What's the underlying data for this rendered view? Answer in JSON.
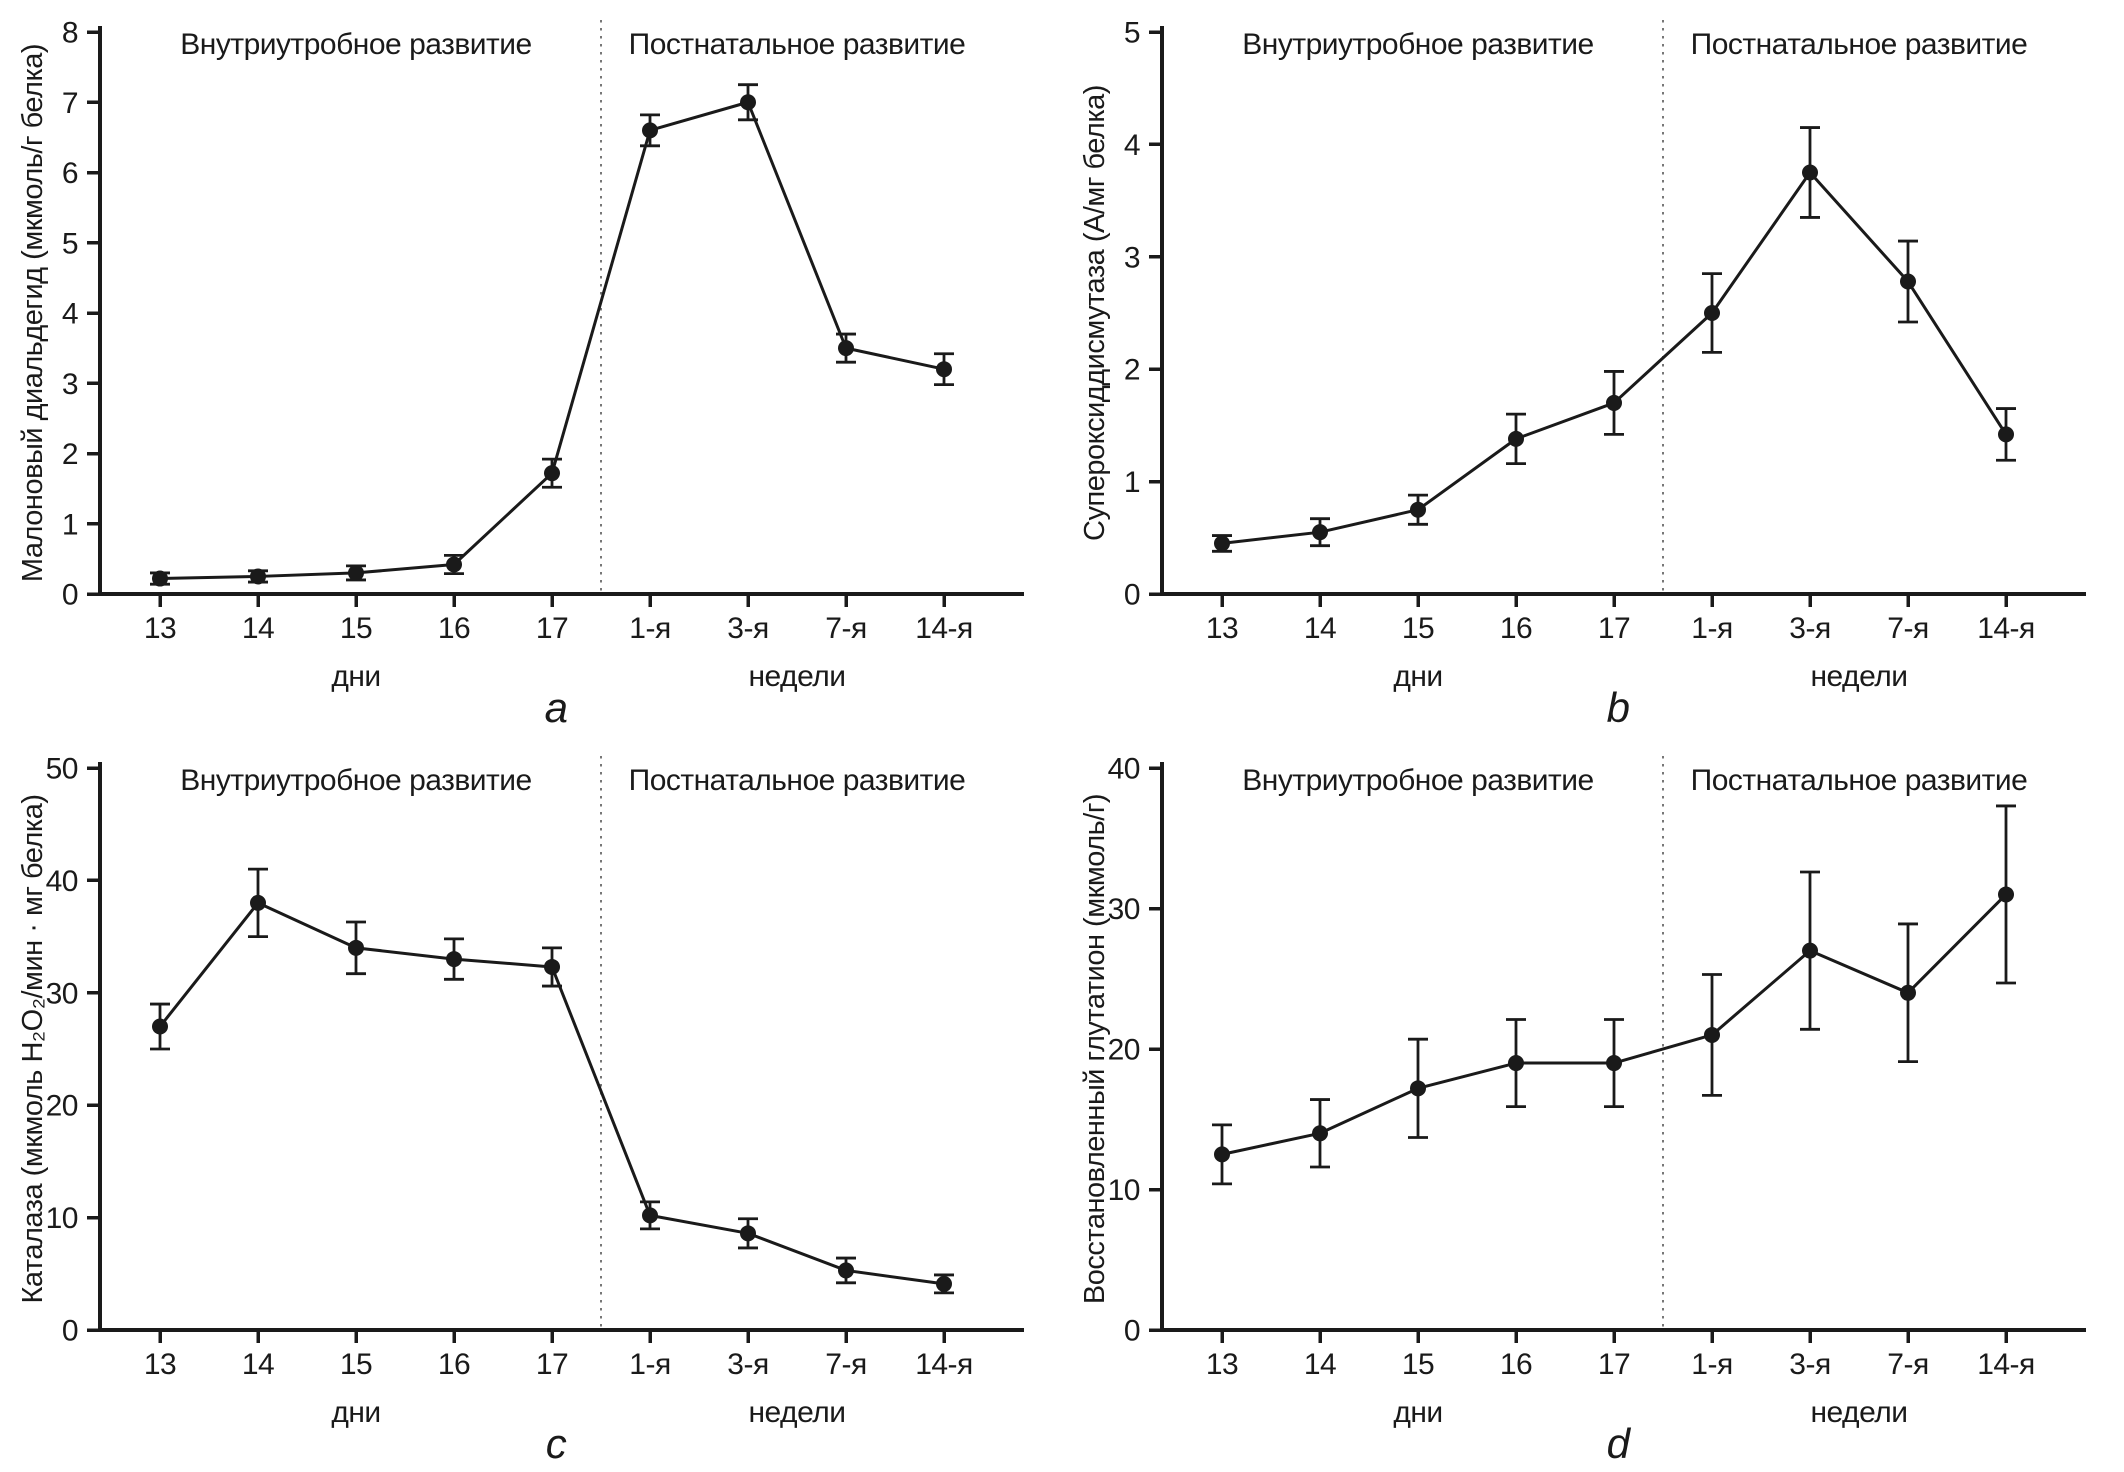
{
  "figure": {
    "background": "#ffffff",
    "line_color": "#1a1a1a",
    "axis_color": "#1a1a1a",
    "divider_color": "#777777",
    "marker": "filled-circle",
    "error_bars": true
  },
  "chart_data": [
    {
      "type": "line",
      "panel_label": "a",
      "ylabel": "Малоновый диальдегид (мкмоль/г белка)",
      "ylim": [
        0,
        8
      ],
      "yticks": [
        0,
        1,
        2,
        3,
        4,
        5,
        6,
        7,
        8
      ],
      "sections": {
        "left": "Внутриутробное развитие",
        "right": "Постнатальное развитие"
      },
      "x_groups": [
        {
          "label": "дни",
          "categories": [
            "13",
            "14",
            "15",
            "16",
            "17"
          ]
        },
        {
          "label": "недели",
          "categories": [
            "1-я",
            "3-я",
            "7-я",
            "14-я"
          ]
        }
      ],
      "series": [
        {
          "values": [
            0.22,
            0.25,
            0.3,
            0.42,
            1.72,
            6.6,
            7.0,
            3.5,
            3.2
          ],
          "errors": [
            0.08,
            0.08,
            0.1,
            0.13,
            0.2,
            0.22,
            0.25,
            0.2,
            0.22
          ]
        }
      ],
      "grid": false,
      "legend": "none"
    },
    {
      "type": "line",
      "panel_label": "b",
      "ylabel": "Супероксиддисмутаза (А/мг белка)",
      "ylim": [
        0,
        5
      ],
      "yticks": [
        0,
        1,
        2,
        3,
        4,
        5
      ],
      "sections": {
        "left": "Внутриутробное развитие",
        "right": "Постнатальное развитие"
      },
      "x_groups": [
        {
          "label": "дни",
          "categories": [
            "13",
            "14",
            "15",
            "16",
            "17"
          ]
        },
        {
          "label": "недели",
          "categories": [
            "1-я",
            "3-я",
            "7-я",
            "14-я"
          ]
        }
      ],
      "series": [
        {
          "values": [
            0.45,
            0.55,
            0.75,
            1.38,
            1.7,
            2.5,
            3.75,
            2.78,
            1.42
          ],
          "errors": [
            0.07,
            0.12,
            0.13,
            0.22,
            0.28,
            0.35,
            0.4,
            0.36,
            0.23
          ]
        }
      ],
      "grid": false,
      "legend": "none"
    },
    {
      "type": "line",
      "panel_label": "c",
      "ylabel": "Каталаза (мкмоль Н₂О₂/мин · мг белка)",
      "ylim": [
        0,
        50
      ],
      "yticks": [
        0,
        10,
        20,
        30,
        40,
        50
      ],
      "sections": {
        "left": "Внутриутробное развитие",
        "right": "Постнатальное развитие"
      },
      "x_groups": [
        {
          "label": "дни",
          "categories": [
            "13",
            "14",
            "15",
            "16",
            "17"
          ]
        },
        {
          "label": "недели",
          "categories": [
            "1-я",
            "3-я",
            "7-я",
            "14-я"
          ]
        }
      ],
      "series": [
        {
          "values": [
            27,
            38,
            34,
            33,
            32.3,
            10.2,
            8.6,
            5.3,
            4.1
          ],
          "errors": [
            2,
            3,
            2.3,
            1.8,
            1.7,
            1.2,
            1.3,
            1.1,
            0.8
          ]
        }
      ],
      "grid": false,
      "legend": "none"
    },
    {
      "type": "line",
      "panel_label": "d",
      "ylabel": "Восстановленный глутатион (мкмоль/г)",
      "ylim": [
        0,
        40
      ],
      "yticks": [
        0,
        10,
        20,
        30,
        40
      ],
      "sections": {
        "left": "Внутриутробное развитие",
        "right": "Постнатальное развитие"
      },
      "x_groups": [
        {
          "label": "дни",
          "categories": [
            "13",
            "14",
            "15",
            "16",
            "17"
          ]
        },
        {
          "label": "недели",
          "categories": [
            "1-я",
            "3-я",
            "7-я",
            "14-я"
          ]
        }
      ],
      "series": [
        {
          "values": [
            12.5,
            14,
            17.2,
            19,
            19,
            21,
            27,
            24,
            31
          ],
          "errors": [
            2.1,
            2.4,
            3.5,
            3.1,
            3.1,
            4.3,
            5.6,
            4.9,
            6.3
          ]
        }
      ],
      "grid": false,
      "legend": "none"
    }
  ]
}
